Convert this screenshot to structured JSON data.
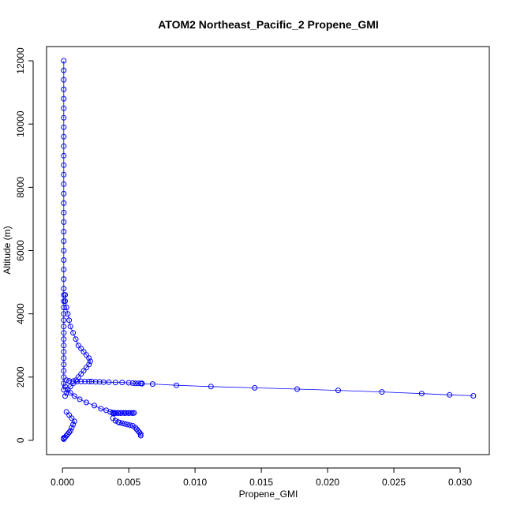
{
  "chart_data": {
    "type": "scatter",
    "title": "ATOM2 Northeast_Pacific_2 Propene_GMI",
    "xlabel": "Propene_GMI",
    "ylabel": "Altitude (m)",
    "xlim": [
      -0.0012,
      0.0322
    ],
    "ylim": [
      -450,
      12450
    ],
    "x_ticks": [
      0.0,
      0.005,
      0.01,
      0.015,
      0.02,
      0.025,
      0.03
    ],
    "x_tick_labels": [
      "0.000",
      "0.005",
      "0.010",
      "0.015",
      "0.020",
      "0.025",
      "0.030"
    ],
    "y_ticks": [
      0,
      2000,
      4000,
      6000,
      8000,
      10000,
      12000
    ],
    "y_tick_labels": [
      "0",
      "2000",
      "4000",
      "6000",
      "8000",
      "10000",
      "12000"
    ],
    "grid": false,
    "legend": "none",
    "series": [
      {
        "color": "#0000ff",
        "marker": "open-circle",
        "connected": true,
        "segments": [
          {
            "x": [
              0.0001,
              0.0001,
              0.0001,
              0.0001,
              0.0001,
              0.0001,
              0.0001,
              0.0001,
              0.0001,
              0.0001,
              0.0001,
              0.0001,
              0.0001,
              0.0001,
              0.0001,
              0.0001,
              0.0001,
              0.0001,
              0.0001,
              0.0001,
              0.0001,
              0.0001,
              0.0001,
              0.0001,
              0.0001,
              0.0001,
              0.0001,
              0.0001,
              0.0001,
              0.0001,
              0.0001,
              0.0001,
              0.0001,
              0.0001,
              0.0001,
              0.0001,
              0.0001,
              0.0001,
              0.0001,
              0.0001,
              0.0001
            ],
            "y": [
              12000,
              11700,
              11400,
              11100,
              10800,
              10500,
              10200,
              9900,
              9600,
              9300,
              9000,
              8700,
              8400,
              8100,
              7800,
              7500,
              7200,
              6900,
              6600,
              6300,
              6000,
              5700,
              5400,
              5100,
              4800,
              4600,
              4400,
              4200,
              4000,
              3800,
              3600,
              3400,
              3200,
              3000,
              2800,
              2600,
              2400,
              2200,
              2000,
              1800,
              1600
            ]
          },
          {
            "x": [
              0.0002,
              0.0002,
              0.0003,
              0.0004,
              0.0005,
              0.0006,
              0.0008,
              0.001,
              0.0012,
              0.0014,
              0.0016,
              0.0018,
              0.002,
              0.0021,
              0.002,
              0.0018,
              0.0016,
              0.0014,
              0.0012,
              0.001,
              0.0008,
              0.0006,
              0.0004,
              0.0003,
              0.0002
            ],
            "y": [
              4600,
              4400,
              4200,
              4000,
              3800,
              3600,
              3400,
              3200,
              3000,
              2900,
              2800,
              2700,
              2600,
              2500,
              2400,
              2300,
              2200,
              2100,
              2000,
              1900,
              1800,
              1700,
              1600,
              1500,
              1400
            ]
          },
          {
            "x": [
              0.0003,
              0.0005,
              0.0008,
              0.0011,
              0.0014,
              0.0017,
              0.002,
              0.0022,
              0.0025,
              0.0028,
              0.0031,
              0.0035,
              0.004,
              0.0045,
              0.005,
              0.0053,
              0.0055,
              0.0057,
              0.0059,
              0.006
            ],
            "y": [
              1900,
              1880,
              1870,
              1860,
              1860,
              1860,
              1860,
              1860,
              1850,
              1850,
              1840,
              1840,
              1830,
              1830,
              1820,
              1810,
              1800,
              1800,
              1800,
              1800
            ]
          },
          {
            "x": [
              0.006,
              0.0068,
              0.0086,
              0.0112,
              0.0145,
              0.0177,
              0.0208,
              0.0241,
              0.0271,
              0.0292,
              0.031
            ],
            "y": [
              1790,
              1780,
              1740,
              1700,
              1660,
              1620,
              1580,
              1530,
              1480,
              1440,
              1410
            ]
          },
          {
            "x": [
              0.0002,
              0.0004,
              0.0006,
              0.0009,
              0.0013,
              0.0018,
              0.0024,
              0.0029,
              0.0033,
              0.0036,
              0.0038,
              0.004,
              0.0042,
              0.0044,
              0.0046,
              0.0048,
              0.005,
              0.0052,
              0.0054,
              0.0053,
              0.005,
              0.0047,
              0.0044,
              0.0042,
              0.004,
              0.0039,
              0.0038
            ],
            "y": [
              1700,
              1600,
              1500,
              1400,
              1300,
              1200,
              1100,
              1000,
              950,
              900,
              880,
              870,
              870,
              870,
              870,
              870,
              870,
              870,
              870,
              860,
              860,
              860,
              860,
              860,
              860,
              860,
              860
            ]
          },
          {
            "x": [
              0.0038,
              0.004,
              0.0042,
              0.0043,
              0.0045,
              0.0047,
              0.0049,
              0.0051,
              0.0053,
              0.0055,
              0.0056,
              0.0057,
              0.0058,
              0.0059,
              0.0059
            ],
            "y": [
              700,
              620,
              580,
              560,
              540,
              520,
              500,
              480,
              460,
              400,
              350,
              300,
              250,
              200,
              150
            ]
          },
          {
            "x": [
              0.0003,
              0.0005,
              0.0007,
              0.0009,
              0.0008,
              0.0007,
              0.0006,
              0.0005,
              0.0004,
              0.0003,
              0.0002,
              0.0001,
              0.0001,
              0.0001
            ],
            "y": [
              900,
              800,
              700,
              600,
              500,
              400,
              300,
              250,
              200,
              150,
              100,
              80,
              60,
              40
            ]
          }
        ]
      }
    ]
  }
}
